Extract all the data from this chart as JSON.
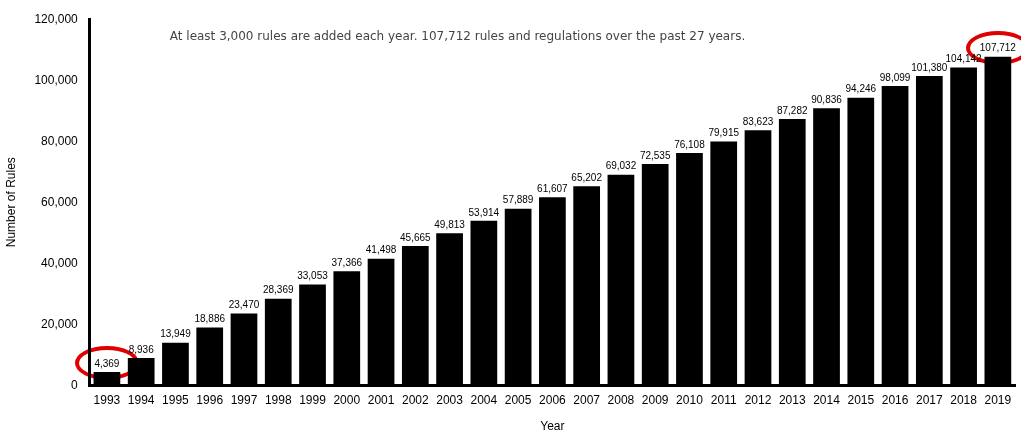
{
  "chart_data": {
    "type": "bar",
    "title": "At least 3,000 rules are added each year. 107,712 rules and regulations over the past 27 years.",
    "xlabel": "Year",
    "ylabel": "Number of Rules",
    "categories": [
      "1993",
      "1994",
      "1995",
      "1996",
      "1997",
      "1998",
      "1999",
      "2000",
      "2001",
      "2002",
      "2003",
      "2004",
      "2005",
      "2006",
      "2007",
      "2008",
      "2009",
      "2010",
      "2011",
      "2012",
      "2013",
      "2014",
      "2015",
      "2016",
      "2017",
      "2018",
      "2019"
    ],
    "values": [
      4369,
      8936,
      13949,
      18886,
      23470,
      28369,
      33053,
      37366,
      41498,
      45665,
      49813,
      53914,
      57889,
      61607,
      65202,
      69032,
      72535,
      76108,
      79915,
      83623,
      87282,
      90836,
      94246,
      98099,
      101380,
      104142,
      107712
    ],
    "value_labels": [
      "4,369",
      "8,936",
      "13,949",
      "18,886",
      "23,470",
      "28,369",
      "33,053",
      "37,366",
      "41,498",
      "45,665",
      "49,813",
      "53,914",
      "57,889",
      "61,607",
      "65,202",
      "69,032",
      "72,535",
      "76,108",
      "79,915",
      "83,623",
      "87,282",
      "90,836",
      "94,246",
      "98,099",
      "101,380",
      "104,142",
      "107,712"
    ],
    "color": "#000000",
    "ylim": [
      0,
      120000
    ],
    "yticks": [
      0,
      {
        "value": 20000,
        "label": "20,000"
      },
      {
        "value": 40000,
        "label": "40,000"
      },
      {
        "value": 60000,
        "label": "60,000"
      },
      {
        "value": 80000,
        "label": "80,000"
      },
      {
        "value": 100000,
        "label": "100,000"
      },
      {
        "value": 120000,
        "label": "120,000"
      }
    ],
    "grid": false,
    "legend": false
  }
}
